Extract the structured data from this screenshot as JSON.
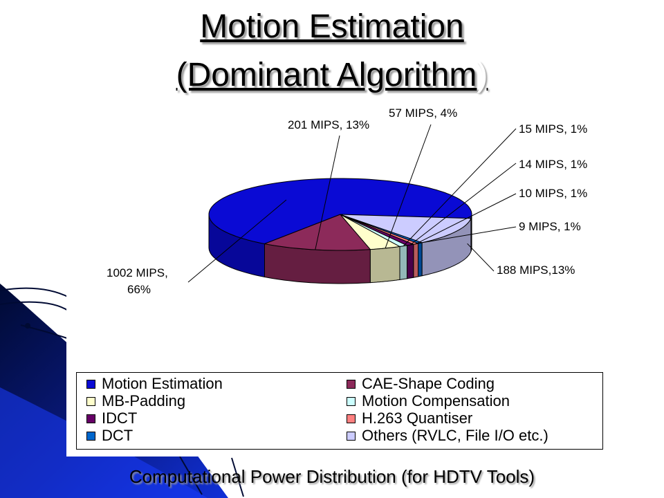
{
  "slide": {
    "title_line1": "Motion Estimation",
    "title_line2_main": "(Dominant Algorithm",
    "title_line2_paren": ")",
    "caption": "Computational Power Distribution (for HDTV Tools)"
  },
  "chart_data": {
    "type": "pie",
    "title": "",
    "slices": [
      {
        "name": "Motion Estimation",
        "mips": 1002,
        "percent": 66,
        "label": "1002 MIPS,\n66%",
        "color": "#0a0ad4"
      },
      {
        "name": "CAE-Shape Coding",
        "mips": 201,
        "percent": 13,
        "label": "201 MIPS, 13%",
        "color": "#8c2a5a"
      },
      {
        "name": "MB-Padding",
        "mips": 57,
        "percent": 4,
        "label": "57 MIPS, 4%",
        "color": "#ffffcc"
      },
      {
        "name": "Motion Compensation",
        "mips": 15,
        "percent": 1,
        "label": "15 MIPS, 1%",
        "color": "#ccffff"
      },
      {
        "name": "IDCT",
        "mips": 14,
        "percent": 1,
        "label": "14 MIPS, 1%",
        "color": "#660066"
      },
      {
        "name": "H.263 Quantiser",
        "mips": 10,
        "percent": 1,
        "label": "10 MIPS, 1%",
        "color": "#ff8080"
      },
      {
        "name": "DCT",
        "mips": 9,
        "percent": 1,
        "label": "9 MIPS, 1%",
        "color": "#0066cc"
      },
      {
        "name": "Others (RVLC, File I/O etc.)",
        "mips": 188,
        "percent": 13,
        "label": "188 MIPS,13%",
        "color": "#ccccff"
      }
    ],
    "legend": {
      "placement": "bottom",
      "columns": [
        [
          "Motion Estimation",
          "MB-Padding",
          "IDCT",
          "DCT"
        ],
        [
          "CAE-Shape Coding",
          "Motion Compensation",
          "H.263 Quantiser",
          "Others (RVLC, File I/O etc.)"
        ]
      ]
    }
  },
  "colors": {
    "decor_dark": "#000a33",
    "decor_blue": "#1030d8"
  }
}
